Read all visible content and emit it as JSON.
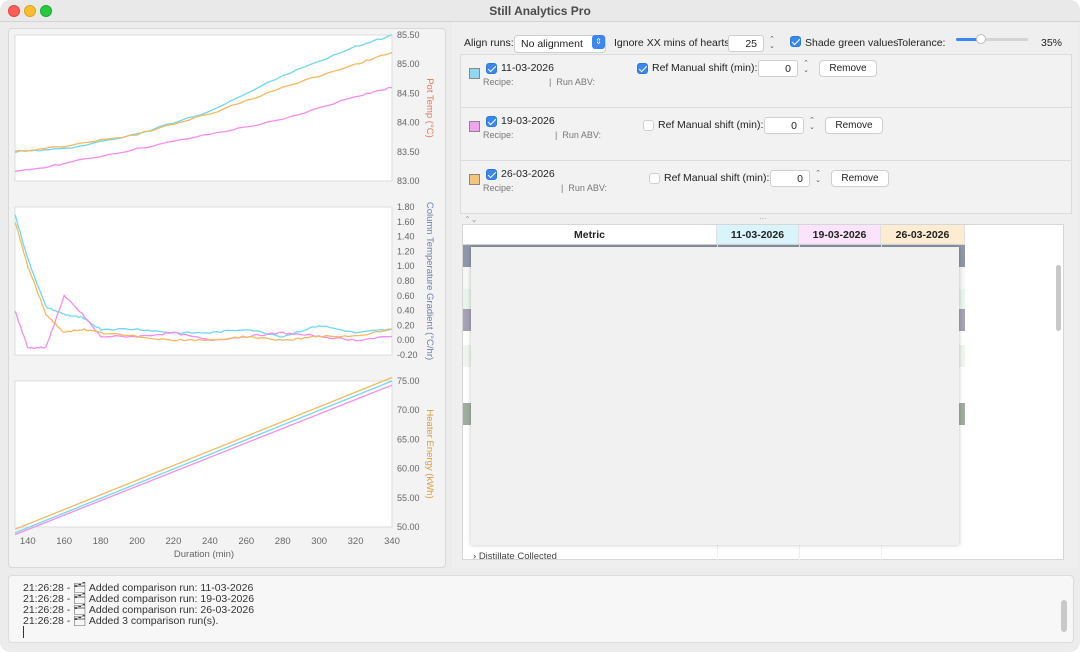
{
  "window": {
    "title": "Still Analytics Pro"
  },
  "charts": {
    "pot_temp": {
      "ylabel": "Pot Temp (°C)",
      "ylim": [
        83.0,
        85.5
      ],
      "ticks": [
        "85.50",
        "85.00",
        "84.50",
        "84.00",
        "83.50",
        "83.00"
      ],
      "color_label": "#e0765a"
    },
    "column_gradient": {
      "ylabel": "Column Temperature Gradient (°C/hr)",
      "ylim": [
        -0.2,
        1.8
      ],
      "ticks": [
        "1.80",
        "1.60",
        "1.40",
        "1.20",
        "1.00",
        "0.80",
        "0.60",
        "0.40",
        "0.20",
        "0.00",
        "-0.20"
      ],
      "color_label": "#6a7fa8"
    },
    "heater_energy": {
      "ylabel": "Heater Energy (kWh)",
      "ylim": [
        50,
        75
      ],
      "ticks": [
        "75.00",
        "70.00",
        "65.00",
        "60.00",
        "55.00",
        "50.00"
      ],
      "color_label": "#d79a3c"
    },
    "x_axis": {
      "xlabel": "Duration (min)",
      "ticks": [
        "140",
        "160",
        "180",
        "200",
        "220",
        "240",
        "260",
        "280",
        "300",
        "320",
        "340"
      ],
      "xlim": [
        133,
        340
      ]
    }
  },
  "chart_data": [
    {
      "type": "line",
      "ylabel": "Pot Temp (°C)",
      "xlabel": "",
      "x": [
        133,
        160,
        200,
        240,
        280,
        320,
        340
      ],
      "series": [
        {
          "name": "11-03-2026",
          "color": "#6fd8ee",
          "values": [
            83.5,
            83.55,
            83.8,
            84.2,
            84.8,
            85.3,
            85.5
          ]
        },
        {
          "name": "19-03-2026",
          "color": "#f48cf0",
          "values": [
            83.15,
            83.3,
            83.55,
            83.8,
            84.05,
            84.45,
            84.6
          ]
        },
        {
          "name": "26-03-2026",
          "color": "#f5b860",
          "values": [
            83.5,
            83.6,
            83.8,
            84.15,
            84.6,
            85.0,
            85.2
          ]
        }
      ],
      "ylim": [
        83.0,
        85.5
      ]
    },
    {
      "type": "line",
      "ylabel": "Column Temperature Gradient (°C/hr)",
      "xlabel": "",
      "x": [
        133,
        140,
        150,
        160,
        170,
        180,
        200,
        220,
        240,
        260,
        280,
        300,
        320,
        340
      ],
      "series": [
        {
          "name": "11-03-2026",
          "color": "#6fd8ee",
          "values": [
            1.7,
            1.1,
            0.45,
            0.35,
            0.3,
            0.15,
            0.15,
            0.1,
            0.1,
            0.15,
            0.05,
            0.2,
            0.1,
            0.15
          ]
        },
        {
          "name": "19-03-2026",
          "color": "#f48cf0",
          "values": [
            0.4,
            -0.1,
            -0.1,
            0.6,
            0.35,
            0.05,
            0.05,
            0.1,
            0.0,
            0.05,
            0.1,
            0.05,
            0.0,
            0.05
          ]
        },
        {
          "name": "26-03-2026",
          "color": "#f5b860",
          "values": [
            1.6,
            1.0,
            0.35,
            0.1,
            0.15,
            0.1,
            0.05,
            0.0,
            0.0,
            0.05,
            0.0,
            0.05,
            0.05,
            0.15
          ]
        }
      ],
      "ylim": [
        -0.2,
        1.8
      ]
    },
    {
      "type": "line",
      "ylabel": "Heater Energy (kWh)",
      "xlabel": "Duration (min)",
      "x": [
        133,
        340
      ],
      "series": [
        {
          "name": "11-03-2026",
          "color": "#6fd8ee",
          "values": [
            49.0,
            75.0
          ]
        },
        {
          "name": "19-03-2026",
          "color": "#f48cf0",
          "values": [
            48.7,
            74.3
          ]
        },
        {
          "name": "26-03-2026",
          "color": "#f5b860",
          "values": [
            49.6,
            75.6
          ]
        }
      ],
      "ylim": [
        50,
        75
      ]
    }
  ],
  "controls": {
    "align_label": "Align runs:",
    "align_value": "No alignment",
    "ignore_label": "Ignore XX mins of hearts:",
    "ignore_value": "25",
    "shade_label": "Shade green values",
    "tolerance_label": "Tolerance:",
    "tolerance_value": "35%",
    "tolerance_fraction": 0.35
  },
  "runs": [
    {
      "date": "11-03-2026",
      "color": "#8fd8ef",
      "recipe_label": "Recipe:",
      "abv_label": "Run ABV:",
      "ref_checked": true,
      "ref_label": "Ref",
      "shift_label": "Manual shift (min):",
      "shift_value": "0",
      "remove_label": "Remove"
    },
    {
      "date": "19-03-2026",
      "color": "#f2a3f2",
      "recipe_label": "Recipe:",
      "abv_label": "Run ABV:",
      "ref_checked": false,
      "ref_label": "Ref",
      "shift_label": "Manual shift (min):",
      "shift_value": "0",
      "remove_label": "Remove"
    },
    {
      "date": "26-03-2026",
      "color": "#f5c47a",
      "recipe_label": "Recipe:",
      "abv_label": "Run ABV:",
      "ref_checked": false,
      "ref_label": "Ref",
      "shift_label": "Manual shift (min):",
      "shift_value": "0",
      "remove_label": "Remove"
    }
  ],
  "table": {
    "headers": [
      {
        "label": "Metric",
        "bg": "#ffffff"
      },
      {
        "label": "11-03-2026",
        "bg": "#d9f5fb"
      },
      {
        "label": "19-03-2026",
        "bg": "#fbe3fb"
      },
      {
        "label": "26-03-2026",
        "bg": "#fdebd2"
      }
    ],
    "partial_row": "Distillate Collected"
  },
  "log": {
    "lines": [
      "21:26:28 - 🗂 Added comparison run: 11-03-2026",
      "21:26:28 - 🗂 Added comparison run: 19-03-2026",
      "21:26:28 - 🗂 Added comparison run: 26-03-2026",
      "21:26:28 - 🗂 Added 3 comparison run(s)."
    ]
  }
}
